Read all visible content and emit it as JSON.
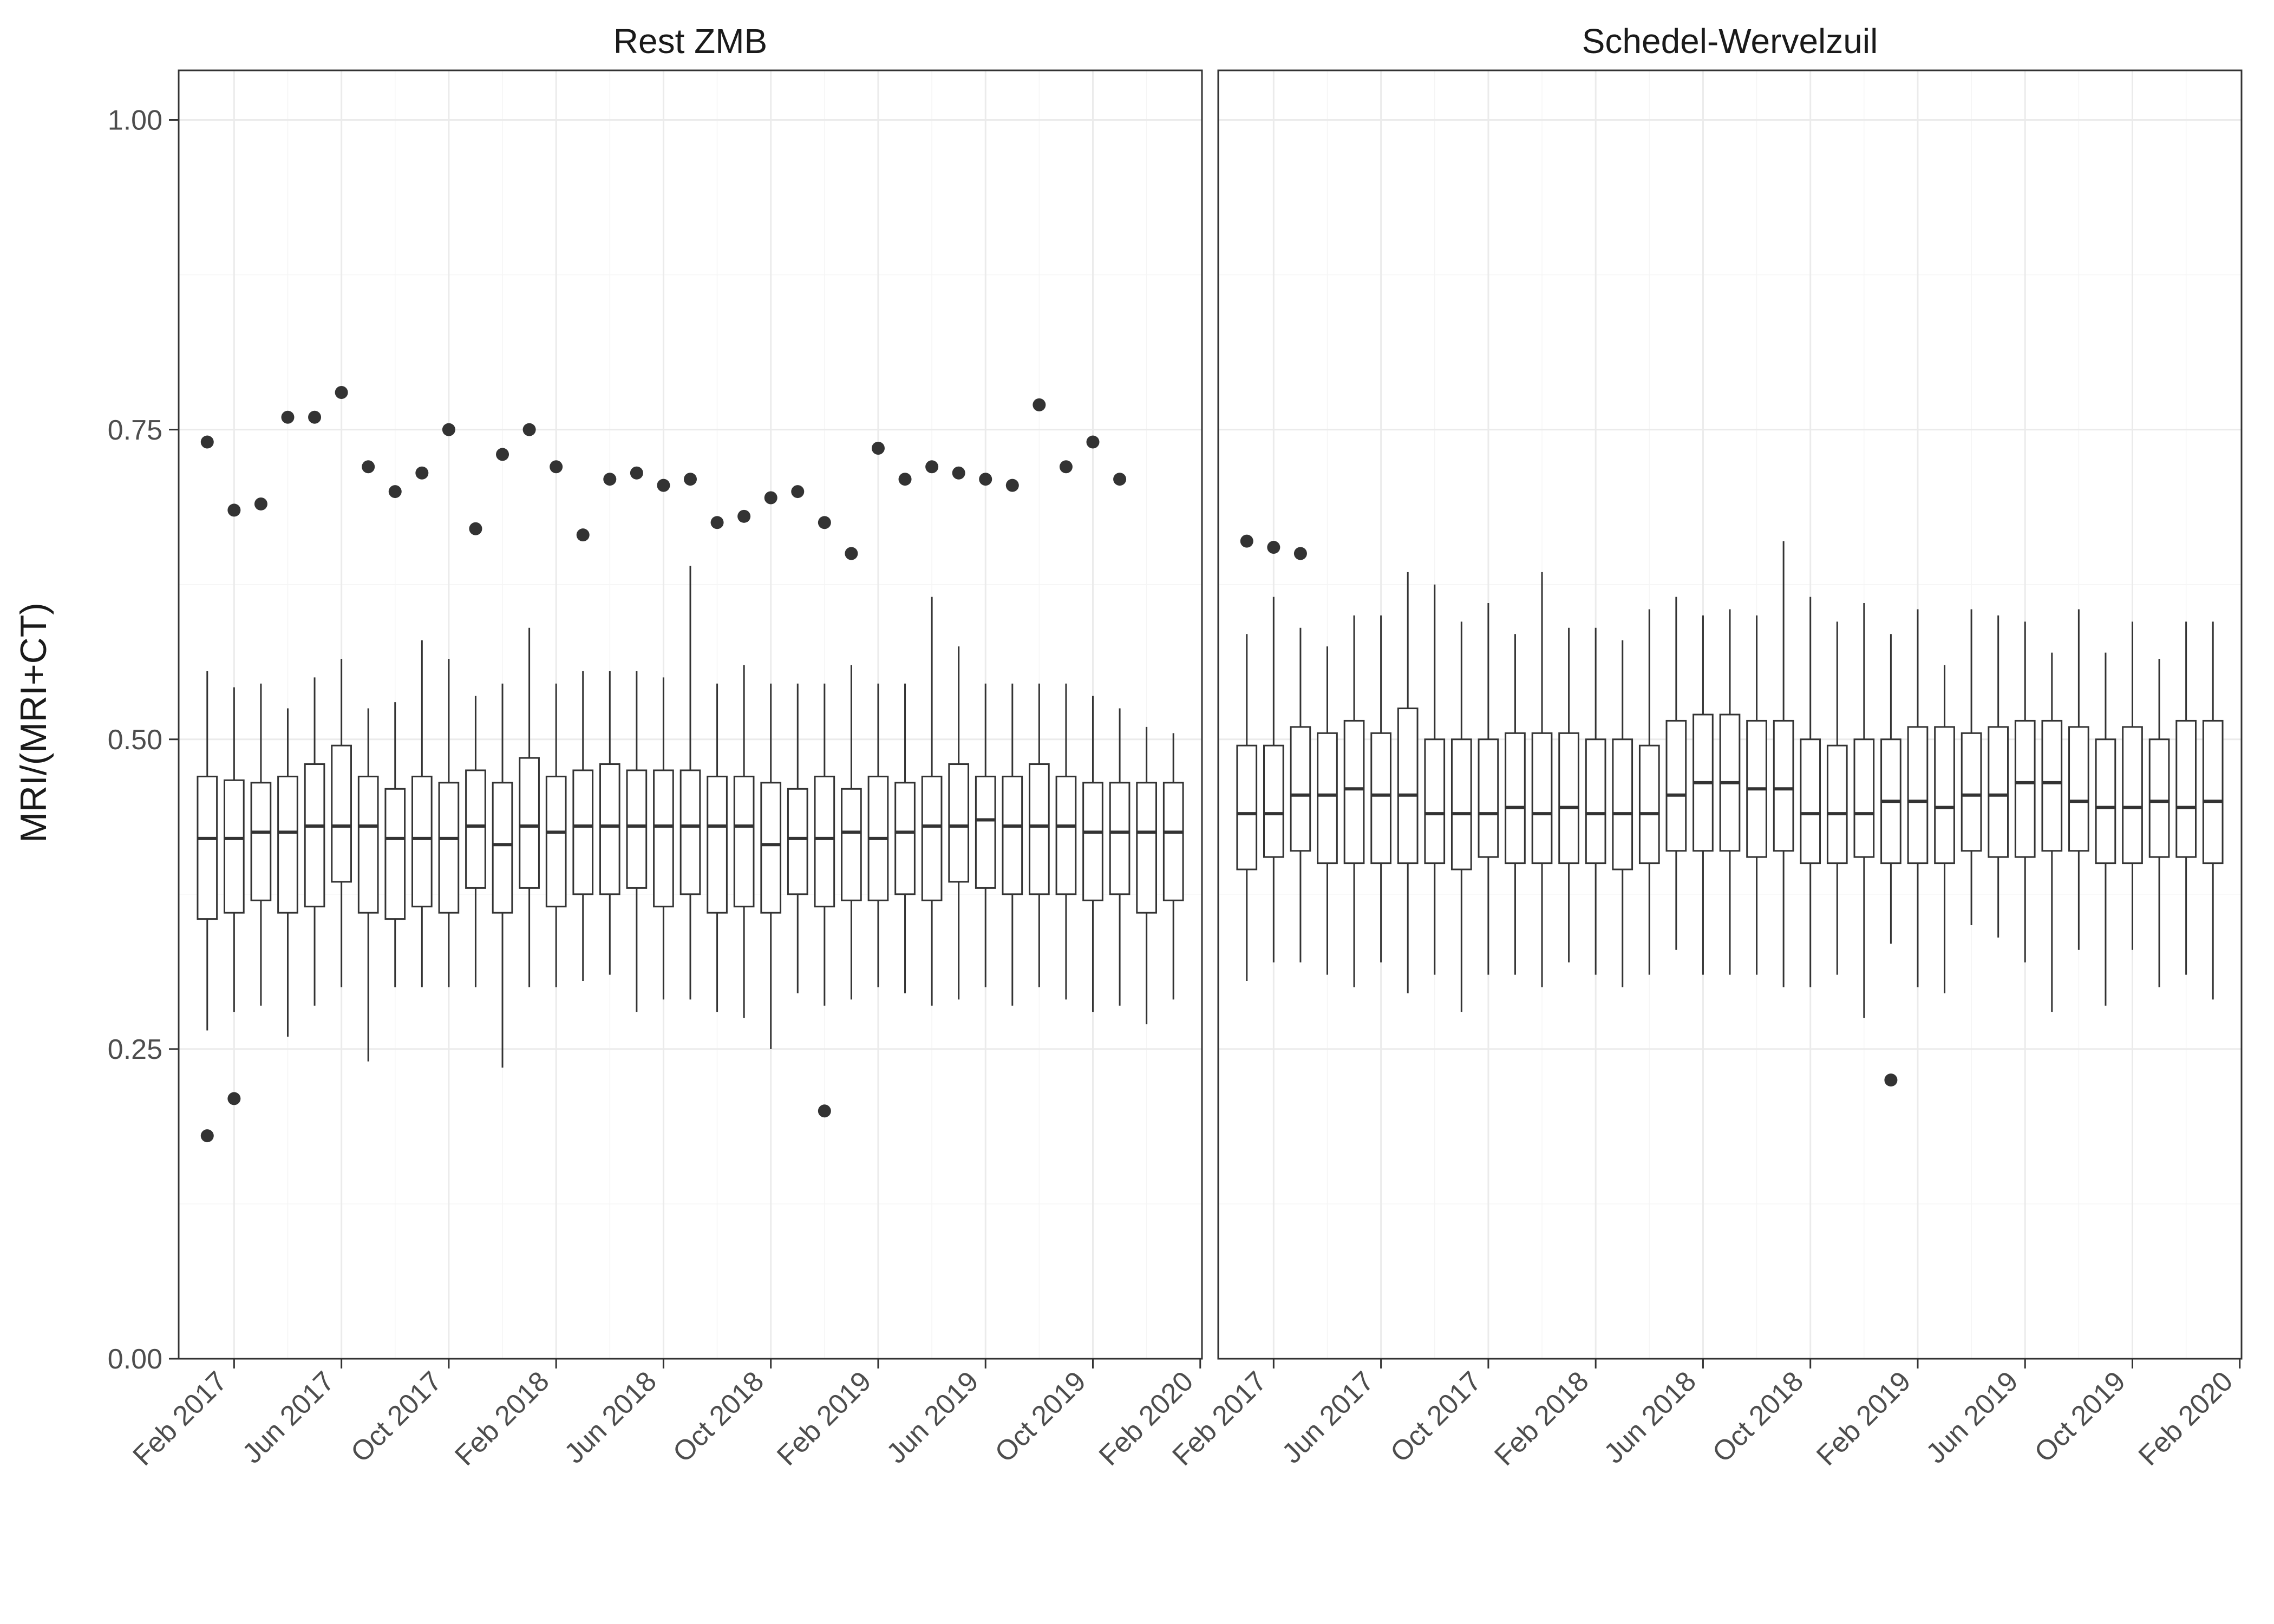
{
  "chart": {
    "type": "boxplot",
    "facets": [
      "Rest ZMB",
      "Schedel-Wervelzuil"
    ],
    "ylab": "MRI/(MRI+CT)",
    "ylim": [
      0.0,
      1.04
    ],
    "ytick_step": 0.25,
    "ytick_labels": [
      "0.00",
      "0.25",
      "0.50",
      "0.75",
      "1.00"
    ],
    "background_color": "#ffffff",
    "grid_major_color": "#ebebeb",
    "grid_minor_color": "#f5f5f5",
    "panel_border_color": "#333333",
    "box_fill": "#ffffff",
    "box_stroke": "#333333",
    "box_stroke_width": 3,
    "median_stroke_width": 6,
    "whisker_stroke_width": 3,
    "outlier_radius": 12,
    "outlier_fill": "#333333",
    "axis_text_color": "#4d4d4d",
    "axis_fontsize": 52,
    "ylab_fontsize": 68,
    "strip_fontsize": 64,
    "x_categories_all": [
      "Jan 2017",
      "Feb 2017",
      "Mar 2017",
      "Apr 2017",
      "May 2017",
      "Jun 2017",
      "Jul 2017",
      "Aug 2017",
      "Sep 2017",
      "Oct 2017",
      "Nov 2017",
      "Dec 2017",
      "Jan 2018",
      "Feb 2018",
      "Mar 2018",
      "Apr 2018",
      "May 2018",
      "Jun 2018",
      "Jul 2018",
      "Aug 2018",
      "Sep 2018",
      "Oct 2018",
      "Nov 2018",
      "Dec 2018",
      "Jan 2019",
      "Feb 2019",
      "Mar 2019",
      "Apr 2019",
      "May 2019",
      "Jun 2019",
      "Jul 2019",
      "Aug 2019",
      "Sep 2019",
      "Oct 2019",
      "Nov 2019",
      "Dec 2019",
      "Jan 2020"
    ],
    "x_tick_labels": [
      "Feb 2017",
      "Jun 2017",
      "Oct 2017",
      "Feb 2018",
      "Jun 2018",
      "Oct 2018",
      "Feb 2019",
      "Jun 2019",
      "Oct 2019",
      "Feb 2020"
    ],
    "x_tick_label_indices": [
      1,
      5,
      9,
      13,
      17,
      21,
      25,
      29,
      33,
      37
    ],
    "panels": {
      "Rest ZMB": {
        "boxes": [
          {
            "ymin": 0.265,
            "lower": 0.355,
            "median": 0.42,
            "upper": 0.47,
            "ymax": 0.555,
            "outliers": [
              0.74,
              0.18
            ]
          },
          {
            "ymin": 0.28,
            "lower": 0.36,
            "median": 0.42,
            "upper": 0.467,
            "ymax": 0.542,
            "outliers": [
              0.685,
              0.21
            ]
          },
          {
            "ymin": 0.285,
            "lower": 0.37,
            "median": 0.425,
            "upper": 0.465,
            "ymax": 0.545,
            "outliers": [
              0.69
            ]
          },
          {
            "ymin": 0.26,
            "lower": 0.36,
            "median": 0.425,
            "upper": 0.47,
            "ymax": 0.525,
            "outliers": [
              0.76
            ]
          },
          {
            "ymin": 0.285,
            "lower": 0.365,
            "median": 0.43,
            "upper": 0.48,
            "ymax": 0.55,
            "outliers": [
              0.76
            ]
          },
          {
            "ymin": 0.3,
            "lower": 0.385,
            "median": 0.43,
            "upper": 0.495,
            "ymax": 0.565,
            "outliers": [
              0.78
            ]
          },
          {
            "ymin": 0.24,
            "lower": 0.36,
            "median": 0.43,
            "upper": 0.47,
            "ymax": 0.525,
            "outliers": [
              0.72
            ]
          },
          {
            "ymin": 0.3,
            "lower": 0.355,
            "median": 0.42,
            "upper": 0.46,
            "ymax": 0.53,
            "outliers": [
              0.7
            ]
          },
          {
            "ymin": 0.3,
            "lower": 0.365,
            "median": 0.42,
            "upper": 0.47,
            "ymax": 0.58,
            "outliers": [
              0.715
            ]
          },
          {
            "ymin": 0.3,
            "lower": 0.36,
            "median": 0.42,
            "upper": 0.465,
            "ymax": 0.565,
            "outliers": [
              0.75
            ]
          },
          {
            "ymin": 0.3,
            "lower": 0.38,
            "median": 0.43,
            "upper": 0.475,
            "ymax": 0.535,
            "outliers": [
              0.67
            ]
          },
          {
            "ymin": 0.235,
            "lower": 0.36,
            "median": 0.415,
            "upper": 0.465,
            "ymax": 0.545,
            "outliers": [
              0.73
            ]
          },
          {
            "ymin": 0.3,
            "lower": 0.38,
            "median": 0.43,
            "upper": 0.485,
            "ymax": 0.59,
            "outliers": [
              0.75
            ]
          },
          {
            "ymin": 0.3,
            "lower": 0.365,
            "median": 0.425,
            "upper": 0.47,
            "ymax": 0.545,
            "outliers": [
              0.72
            ]
          },
          {
            "ymin": 0.305,
            "lower": 0.375,
            "median": 0.43,
            "upper": 0.475,
            "ymax": 0.555,
            "outliers": [
              0.665
            ]
          },
          {
            "ymin": 0.31,
            "lower": 0.375,
            "median": 0.43,
            "upper": 0.48,
            "ymax": 0.555,
            "outliers": [
              0.71
            ]
          },
          {
            "ymin": 0.28,
            "lower": 0.38,
            "median": 0.43,
            "upper": 0.475,
            "ymax": 0.555,
            "outliers": [
              0.715
            ]
          },
          {
            "ymin": 0.29,
            "lower": 0.365,
            "median": 0.43,
            "upper": 0.475,
            "ymax": 0.55,
            "outliers": [
              0.705
            ]
          },
          {
            "ymin": 0.29,
            "lower": 0.375,
            "median": 0.43,
            "upper": 0.475,
            "ymax": 0.64,
            "outliers": [
              0.71
            ]
          },
          {
            "ymin": 0.28,
            "lower": 0.36,
            "median": 0.43,
            "upper": 0.47,
            "ymax": 0.545,
            "outliers": [
              0.675
            ]
          },
          {
            "ymin": 0.275,
            "lower": 0.365,
            "median": 0.43,
            "upper": 0.47,
            "ymax": 0.56,
            "outliers": [
              0.68
            ]
          },
          {
            "ymin": 0.25,
            "lower": 0.36,
            "median": 0.415,
            "upper": 0.465,
            "ymax": 0.545,
            "outliers": [
              0.695
            ]
          },
          {
            "ymin": 0.295,
            "lower": 0.375,
            "median": 0.42,
            "upper": 0.46,
            "ymax": 0.545,
            "outliers": [
              0.7
            ]
          },
          {
            "ymin": 0.285,
            "lower": 0.365,
            "median": 0.42,
            "upper": 0.47,
            "ymax": 0.545,
            "outliers": [
              0.675,
              0.2
            ]
          },
          {
            "ymin": 0.29,
            "lower": 0.37,
            "median": 0.425,
            "upper": 0.46,
            "ymax": 0.56,
            "outliers": [
              0.65
            ]
          },
          {
            "ymin": 0.3,
            "lower": 0.37,
            "median": 0.42,
            "upper": 0.47,
            "ymax": 0.545,
            "outliers": [
              0.735
            ]
          },
          {
            "ymin": 0.295,
            "lower": 0.375,
            "median": 0.425,
            "upper": 0.465,
            "ymax": 0.545,
            "outliers": [
              0.71
            ]
          },
          {
            "ymin": 0.285,
            "lower": 0.37,
            "median": 0.43,
            "upper": 0.47,
            "ymax": 0.615,
            "outliers": [
              0.72
            ]
          },
          {
            "ymin": 0.29,
            "lower": 0.385,
            "median": 0.43,
            "upper": 0.48,
            "ymax": 0.575,
            "outliers": [
              0.715
            ]
          },
          {
            "ymin": 0.3,
            "lower": 0.38,
            "median": 0.435,
            "upper": 0.47,
            "ymax": 0.545,
            "outliers": [
              0.71
            ]
          },
          {
            "ymin": 0.285,
            "lower": 0.375,
            "median": 0.43,
            "upper": 0.47,
            "ymax": 0.545,
            "outliers": [
              0.705
            ]
          },
          {
            "ymin": 0.3,
            "lower": 0.375,
            "median": 0.43,
            "upper": 0.48,
            "ymax": 0.545,
            "outliers": [
              0.77
            ]
          },
          {
            "ymin": 0.29,
            "lower": 0.375,
            "median": 0.43,
            "upper": 0.47,
            "ymax": 0.545,
            "outliers": [
              0.72
            ]
          },
          {
            "ymin": 0.28,
            "lower": 0.37,
            "median": 0.425,
            "upper": 0.465,
            "ymax": 0.535,
            "outliers": [
              0.74
            ]
          },
          {
            "ymin": 0.285,
            "lower": 0.375,
            "median": 0.425,
            "upper": 0.465,
            "ymax": 0.525,
            "outliers": [
              0.71
            ]
          },
          {
            "ymin": 0.27,
            "lower": 0.36,
            "median": 0.425,
            "upper": 0.465,
            "ymax": 0.51,
            "outliers": []
          },
          {
            "ymin": 0.29,
            "lower": 0.37,
            "median": 0.425,
            "upper": 0.465,
            "ymax": 0.505,
            "outliers": []
          }
        ]
      },
      "Schedel-Wervelzuil": {
        "boxes": [
          {
            "ymin": 0.305,
            "lower": 0.395,
            "median": 0.44,
            "upper": 0.495,
            "ymax": 0.585,
            "outliers": [
              0.66
            ]
          },
          {
            "ymin": 0.32,
            "lower": 0.405,
            "median": 0.44,
            "upper": 0.495,
            "ymax": 0.615,
            "outliers": [
              0.655
            ]
          },
          {
            "ymin": 0.32,
            "lower": 0.41,
            "median": 0.455,
            "upper": 0.51,
            "ymax": 0.59,
            "outliers": [
              0.65
            ]
          },
          {
            "ymin": 0.31,
            "lower": 0.4,
            "median": 0.455,
            "upper": 0.505,
            "ymax": 0.575,
            "outliers": []
          },
          {
            "ymin": 0.3,
            "lower": 0.4,
            "median": 0.46,
            "upper": 0.515,
            "ymax": 0.6,
            "outliers": []
          },
          {
            "ymin": 0.32,
            "lower": 0.4,
            "median": 0.455,
            "upper": 0.505,
            "ymax": 0.6,
            "outliers": []
          },
          {
            "ymin": 0.295,
            "lower": 0.4,
            "median": 0.455,
            "upper": 0.525,
            "ymax": 0.635,
            "outliers": []
          },
          {
            "ymin": 0.31,
            "lower": 0.4,
            "median": 0.44,
            "upper": 0.5,
            "ymax": 0.625,
            "outliers": []
          },
          {
            "ymin": 0.28,
            "lower": 0.395,
            "median": 0.44,
            "upper": 0.5,
            "ymax": 0.595,
            "outliers": []
          },
          {
            "ymin": 0.31,
            "lower": 0.405,
            "median": 0.44,
            "upper": 0.5,
            "ymax": 0.61,
            "outliers": []
          },
          {
            "ymin": 0.31,
            "lower": 0.4,
            "median": 0.445,
            "upper": 0.505,
            "ymax": 0.585,
            "outliers": []
          },
          {
            "ymin": 0.3,
            "lower": 0.4,
            "median": 0.44,
            "upper": 0.505,
            "ymax": 0.635,
            "outliers": []
          },
          {
            "ymin": 0.32,
            "lower": 0.4,
            "median": 0.445,
            "upper": 0.505,
            "ymax": 0.59,
            "outliers": []
          },
          {
            "ymin": 0.31,
            "lower": 0.4,
            "median": 0.44,
            "upper": 0.5,
            "ymax": 0.59,
            "outliers": []
          },
          {
            "ymin": 0.3,
            "lower": 0.395,
            "median": 0.44,
            "upper": 0.5,
            "ymax": 0.58,
            "outliers": []
          },
          {
            "ymin": 0.31,
            "lower": 0.4,
            "median": 0.44,
            "upper": 0.495,
            "ymax": 0.605,
            "outliers": []
          },
          {
            "ymin": 0.33,
            "lower": 0.41,
            "median": 0.455,
            "upper": 0.515,
            "ymax": 0.615,
            "outliers": []
          },
          {
            "ymin": 0.31,
            "lower": 0.41,
            "median": 0.465,
            "upper": 0.52,
            "ymax": 0.6,
            "outliers": []
          },
          {
            "ymin": 0.31,
            "lower": 0.41,
            "median": 0.465,
            "upper": 0.52,
            "ymax": 0.605,
            "outliers": []
          },
          {
            "ymin": 0.31,
            "lower": 0.405,
            "median": 0.46,
            "upper": 0.515,
            "ymax": 0.6,
            "outliers": []
          },
          {
            "ymin": 0.3,
            "lower": 0.41,
            "median": 0.46,
            "upper": 0.515,
            "ymax": 0.66,
            "outliers": []
          },
          {
            "ymin": 0.3,
            "lower": 0.4,
            "median": 0.44,
            "upper": 0.5,
            "ymax": 0.615,
            "outliers": []
          },
          {
            "ymin": 0.31,
            "lower": 0.4,
            "median": 0.44,
            "upper": 0.495,
            "ymax": 0.595,
            "outliers": []
          },
          {
            "ymin": 0.275,
            "lower": 0.405,
            "median": 0.44,
            "upper": 0.5,
            "ymax": 0.61,
            "outliers": []
          },
          {
            "ymin": 0.335,
            "lower": 0.4,
            "median": 0.45,
            "upper": 0.5,
            "ymax": 0.585,
            "outliers": [
              0.225
            ]
          },
          {
            "ymin": 0.3,
            "lower": 0.4,
            "median": 0.45,
            "upper": 0.51,
            "ymax": 0.605,
            "outliers": []
          },
          {
            "ymin": 0.295,
            "lower": 0.4,
            "median": 0.445,
            "upper": 0.51,
            "ymax": 0.56,
            "outliers": []
          },
          {
            "ymin": 0.35,
            "lower": 0.41,
            "median": 0.455,
            "upper": 0.505,
            "ymax": 0.605,
            "outliers": []
          },
          {
            "ymin": 0.34,
            "lower": 0.405,
            "median": 0.455,
            "upper": 0.51,
            "ymax": 0.6,
            "outliers": []
          },
          {
            "ymin": 0.32,
            "lower": 0.405,
            "median": 0.465,
            "upper": 0.515,
            "ymax": 0.595,
            "outliers": []
          },
          {
            "ymin": 0.28,
            "lower": 0.41,
            "median": 0.465,
            "upper": 0.515,
            "ymax": 0.57,
            "outliers": []
          },
          {
            "ymin": 0.33,
            "lower": 0.41,
            "median": 0.45,
            "upper": 0.51,
            "ymax": 0.605,
            "outliers": []
          },
          {
            "ymin": 0.285,
            "lower": 0.4,
            "median": 0.445,
            "upper": 0.5,
            "ymax": 0.57,
            "outliers": []
          },
          {
            "ymin": 0.33,
            "lower": 0.4,
            "median": 0.445,
            "upper": 0.51,
            "ymax": 0.595,
            "outliers": []
          },
          {
            "ymin": 0.3,
            "lower": 0.405,
            "median": 0.45,
            "upper": 0.5,
            "ymax": 0.565,
            "outliers": []
          },
          {
            "ymin": 0.31,
            "lower": 0.405,
            "median": 0.445,
            "upper": 0.515,
            "ymax": 0.595,
            "outliers": []
          },
          {
            "ymin": 0.29,
            "lower": 0.4,
            "median": 0.45,
            "upper": 0.515,
            "ymax": 0.595,
            "outliers": []
          }
        ]
      }
    }
  }
}
